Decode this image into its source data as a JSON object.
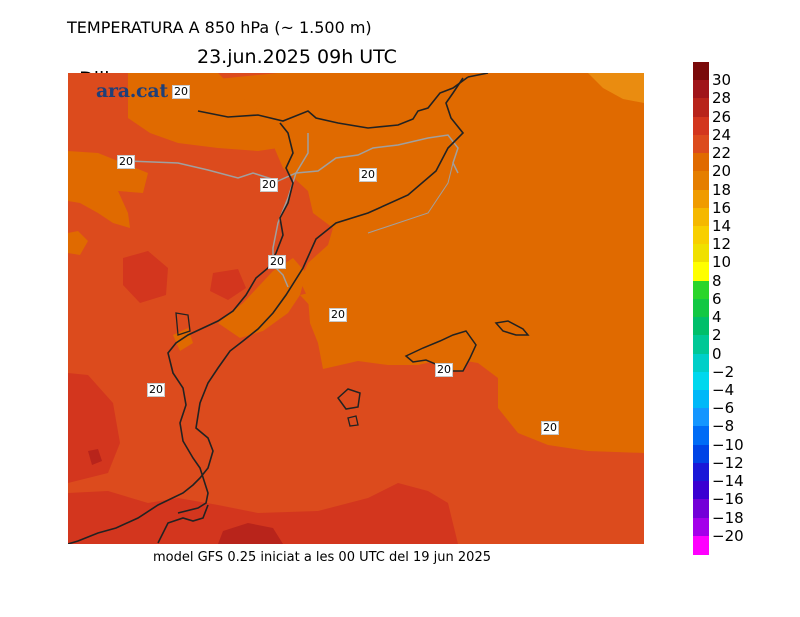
{
  "header": {
    "title": "TEMPERATURA A 850 hPa (~ 1.500 m)",
    "day": "Dilluns",
    "datetime": "23.jun.2025 09h UTC"
  },
  "logo": {
    "text": "ara.cat"
  },
  "footer": {
    "text": "model GFS 0.25 iniciat a les 00 UTC del 19 jun 2025"
  },
  "map": {
    "contour_value_label": "20",
    "contour_labels": [
      "20",
      "20",
      "20",
      "20",
      "20",
      "20",
      "20",
      "20",
      "20"
    ],
    "colors": {
      "range_18_20": "#e06a00",
      "range_20_22": "#dc4b1d",
      "range_22_24": "#d3361e",
      "range_24_26": "#b8241b",
      "range_16_18": "#ea8c10",
      "coast": "#222222",
      "border": "#a0a0a0"
    }
  },
  "legend": {
    "ticks": [
      "30",
      "28",
      "26",
      "24",
      "22",
      "20",
      "18",
      "16",
      "14",
      "12",
      "10",
      "8",
      "6",
      "4",
      "2",
      "0",
      "−2",
      "−4",
      "−6",
      "−8",
      "−10",
      "−12",
      "−14",
      "−16",
      "−18",
      "−20"
    ],
    "colors": [
      "#7a0a0a",
      "#a0151a",
      "#b8241b",
      "#d3361e",
      "#dc4b1d",
      "#e06a00",
      "#e57e00",
      "#f09b00",
      "#f5b800",
      "#f8cf00",
      "#f0e000",
      "#ffff00",
      "#2ad52a",
      "#12c843",
      "#00bf6a",
      "#00c896",
      "#00cfc8",
      "#00d8ee",
      "#00b8f8",
      "#1496ff",
      "#006cf6",
      "#0044e6",
      "#1a18d8",
      "#3a00d2",
      "#7300d8",
      "#a400ea",
      "#ff00ff"
    ]
  }
}
